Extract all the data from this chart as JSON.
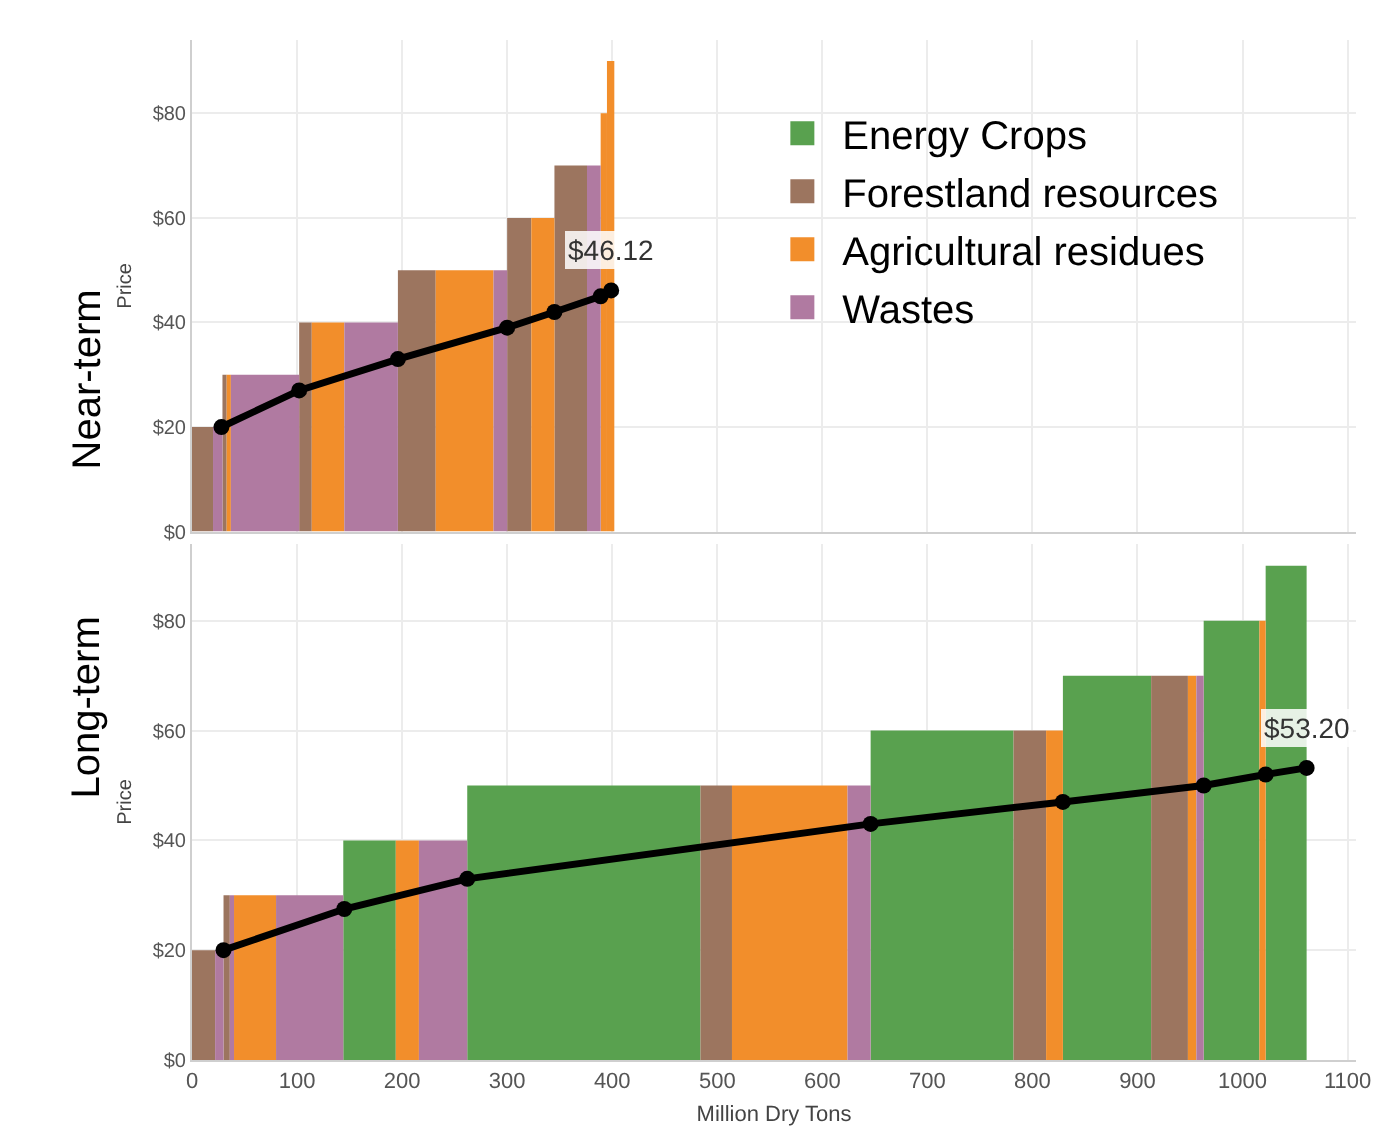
{
  "chart_data": [
    {
      "type": "histogram",
      "title": "Near-term",
      "ylabel": "Price",
      "xlim": [
        0,
        1108
      ],
      "xticks": [
        0,
        100,
        200,
        300,
        400,
        500,
        600,
        700,
        800,
        900,
        1000,
        1100
      ],
      "ylim": [
        0,
        94
      ],
      "yticks": [
        {
          "value": 0,
          "label": "$0"
        },
        {
          "value": 20,
          "label": "$20"
        },
        {
          "value": 40,
          "label": "$40"
        },
        {
          "value": 60,
          "label": "$60"
        },
        {
          "value": 80,
          "label": "$80"
        }
      ],
      "tick_labels": "y",
      "grid": true,
      "legend": "right",
      "bins": [
        0,
        20,
        29,
        33,
        37,
        102,
        114,
        145,
        196,
        232,
        287,
        300,
        323,
        345,
        376,
        389,
        395,
        402
      ],
      "series": [
        {
          "name": "Forestland resources",
          "color": "#9c755f",
          "values": [
            20,
            null,
            30,
            null,
            null,
            40,
            null,
            null,
            50,
            null,
            null,
            60,
            null,
            70,
            null,
            null,
            null
          ]
        },
        {
          "name": "Agricultural residues",
          "color": "#f28e2b",
          "values": [
            null,
            null,
            null,
            30,
            null,
            null,
            40,
            null,
            null,
            50,
            null,
            null,
            60,
            null,
            null,
            80,
            90
          ]
        },
        {
          "name": "Wastes",
          "color": "#b07aa1",
          "values": [
            null,
            20,
            null,
            null,
            30,
            null,
            null,
            40,
            null,
            null,
            50,
            null,
            null,
            null,
            70,
            null,
            null
          ]
        },
        {
          "type": "line",
          "color": "#000000",
          "marker": "circle",
          "line_style": "solid",
          "x": [
            28,
            102,
            196,
            300,
            345,
            389,
            399
          ],
          "values": [
            20,
            27,
            33,
            39,
            42,
            45,
            46.12
          ]
        }
      ],
      "annotations": [
        {
          "text": "$46.12",
          "x": 399,
          "y": 46.12
        }
      ]
    },
    {
      "type": "histogram",
      "title": "Long-term",
      "ylabel": "Price",
      "xlabel": "Million Dry Tons",
      "xlim": [
        0,
        1108
      ],
      "xticks": [
        0,
        100,
        200,
        300,
        400,
        500,
        600,
        700,
        800,
        900,
        1000,
        1100
      ],
      "ylim": [
        0,
        94
      ],
      "yticks": [
        {
          "value": 0,
          "label": "$0"
        },
        {
          "value": 20,
          "label": "$20"
        },
        {
          "value": 40,
          "label": "$40"
        },
        {
          "value": 60,
          "label": "$60"
        },
        {
          "value": 80,
          "label": "$80"
        }
      ],
      "grid": true,
      "bins": [
        0,
        22,
        30,
        36,
        40,
        80,
        144,
        194,
        216,
        262,
        484,
        514,
        624,
        646,
        782,
        813,
        829,
        913,
        948,
        956,
        963,
        1016,
        1022,
        1061
      ],
      "series": [
        {
          "name": "Energy Crops",
          "color": "#59a14f",
          "values": [
            null,
            null,
            null,
            null,
            null,
            null,
            40,
            null,
            null,
            50,
            null,
            null,
            null,
            60,
            null,
            null,
            70,
            null,
            null,
            null,
            80,
            null,
            90
          ]
        },
        {
          "color": "#9c755f",
          "values": [
            20,
            null,
            30,
            null,
            null,
            null,
            null,
            null,
            null,
            null,
            50,
            null,
            null,
            null,
            60,
            null,
            null,
            70,
            null,
            null,
            null,
            null,
            null
          ]
        },
        {
          "color": "#f28e2b",
          "values": [
            null,
            null,
            null,
            null,
            30,
            null,
            null,
            40,
            null,
            null,
            null,
            50,
            null,
            null,
            null,
            60,
            null,
            null,
            70,
            null,
            null,
            80,
            null
          ]
        },
        {
          "color": "#b07aa1",
          "values": [
            null,
            20,
            null,
            30,
            null,
            30,
            null,
            null,
            40,
            null,
            null,
            null,
            50,
            null,
            null,
            null,
            null,
            null,
            null,
            70,
            null,
            null,
            null
          ]
        },
        {
          "type": "line",
          "color": "#000000",
          "marker": "circle",
          "line_style": "solid",
          "x": [
            30,
            145,
            262,
            646,
            829,
            963,
            1022,
            1061
          ],
          "values": [
            20,
            27.5,
            33,
            43,
            47,
            50,
            52,
            53.2
          ]
        }
      ],
      "annotations": [
        {
          "text": "$53.20",
          "x": 1061,
          "y": 53.2
        }
      ]
    }
  ]
}
